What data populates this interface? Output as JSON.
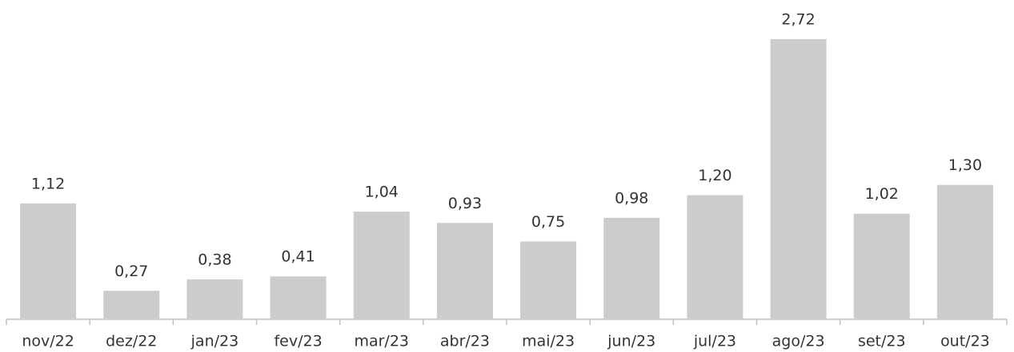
{
  "chart_data": {
    "type": "bar",
    "categories": [
      "nov/22",
      "dez/22",
      "jan/23",
      "fev/23",
      "mar/23",
      "abr/23",
      "mai/23",
      "jun/23",
      "jul/23",
      "ago/23",
      "set/23",
      "out/23"
    ],
    "values": [
      1.12,
      0.27,
      0.38,
      0.41,
      1.04,
      0.93,
      0.75,
      0.98,
      1.2,
      2.72,
      1.02,
      1.3
    ],
    "value_labels": [
      "1,12",
      "0,27",
      "0,38",
      "0,41",
      "1,04",
      "0,93",
      "0,75",
      "0,98",
      "1,20",
      "2,72",
      "1,02",
      "1,30"
    ],
    "color": "#cbcccd"
  }
}
